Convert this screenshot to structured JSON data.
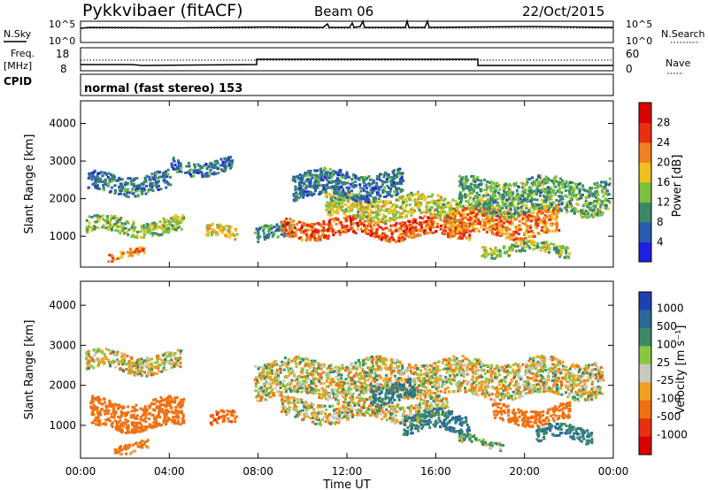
{
  "header": {
    "station": "Pykkvibaer (fitACF)",
    "beam": "Beam 06",
    "date": "22/Oct/2015"
  },
  "top_panels": {
    "nsky_label": "N.Sky",
    "nsky_left_ticks": [
      "10^5",
      "10^0"
    ],
    "nsky_right_ticks": [
      "10^5",
      "10^0"
    ],
    "nsearch_label": "N.Search",
    "freq_label_1": "Freq.",
    "freq_label_2": "[MHz]",
    "freq_ticks": [
      "18",
      "8"
    ],
    "nave_ticks": [
      "60",
      "0"
    ],
    "nave_label": "Nave",
    "cpid_label": "CPID",
    "mode_text": "normal (fast stereo) 153"
  },
  "axes": {
    "ylabel": "Slant Range [km]",
    "xlabel": "Time UT",
    "x_ticks": [
      "00:00",
      "04:00",
      "08:00",
      "12:00",
      "16:00",
      "20:00",
      "00:00"
    ],
    "y_ticks": [
      "1000",
      "2000",
      "3000",
      "4000"
    ]
  },
  "colorbars": {
    "power": {
      "label": "Power [dB]",
      "ticks": [
        "4",
        "8",
        "12",
        "16",
        "20",
        "24",
        "28"
      ],
      "colors": [
        "#2020e0",
        "#2a5ab0",
        "#3a8a6a",
        "#7cc040",
        "#f0c020",
        "#f08020",
        "#e83010",
        "#d80000"
      ]
    },
    "velocity": {
      "label": "Velocity [m s⁻¹]",
      "ticks": [
        "1000",
        "500",
        "100",
        "25",
        "-25",
        "-100",
        "-500",
        "-1000"
      ],
      "colors": [
        "#2040b0",
        "#2a6a9a",
        "#3a8a6a",
        "#88c840",
        "#c8c8c0",
        "#f0a020",
        "#f07010",
        "#e83010",
        "#d80000"
      ]
    }
  },
  "chart_data": [
    {
      "type": "heatmap",
      "name": "power",
      "x_range_hours": [
        0,
        24
      ],
      "ylim_km": [
        180,
        4600
      ],
      "bands": [
        {
          "start_h": 0.2,
          "end_h": 4.6,
          "center_km": 1300,
          "width_km": 420,
          "value_db": 14
        },
        {
          "start_h": 0.3,
          "end_h": 4.0,
          "center_km": 2450,
          "width_km": 500,
          "value_db": 8
        },
        {
          "start_h": 4.0,
          "end_h": 6.8,
          "center_km": 2900,
          "width_km": 350,
          "value_db": 8
        },
        {
          "start_h": 1.2,
          "end_h": 3.0,
          "center_km": 550,
          "width_km": 200,
          "value_db": 22
        },
        {
          "start_h": 5.6,
          "end_h": 7.0,
          "center_km": 1100,
          "width_km": 300,
          "value_db": 18
        },
        {
          "start_h": 7.8,
          "end_h": 9.5,
          "center_km": 1100,
          "width_km": 400,
          "value_db": 10
        },
        {
          "start_h": 9.0,
          "end_h": 17.5,
          "center_km": 1250,
          "width_km": 500,
          "value_db": 24
        },
        {
          "start_h": 11.0,
          "end_h": 17.0,
          "center_km": 1800,
          "width_km": 600,
          "value_db": 16
        },
        {
          "start_h": 9.5,
          "end_h": 14.5,
          "center_km": 2400,
          "width_km": 700,
          "value_db": 8
        },
        {
          "start_h": 16.5,
          "end_h": 21.5,
          "center_km": 1400,
          "width_km": 700,
          "value_db": 22
        },
        {
          "start_h": 17.0,
          "end_h": 23.8,
          "center_km": 2100,
          "width_km": 900,
          "value_db": 12
        },
        {
          "start_h": 18.0,
          "end_h": 22.0,
          "center_km": 700,
          "width_km": 300,
          "value_db": 14
        }
      ]
    },
    {
      "type": "heatmap",
      "name": "velocity",
      "x_range_hours": [
        0,
        24
      ],
      "ylim_km": [
        180,
        4600
      ],
      "bands": [
        {
          "start_h": 0.2,
          "end_h": 4.5,
          "center_km": 2600,
          "width_km": 450,
          "value_ms": 0
        },
        {
          "start_h": 0.4,
          "end_h": 4.6,
          "center_km": 1300,
          "width_km": 700,
          "value_ms": -300
        },
        {
          "start_h": 1.5,
          "end_h": 3.0,
          "center_km": 500,
          "width_km": 250,
          "value_ms": -150
        },
        {
          "start_h": 5.8,
          "end_h": 7.0,
          "center_km": 1150,
          "width_km": 300,
          "value_ms": -400
        },
        {
          "start_h": 7.8,
          "end_h": 23.5,
          "center_km": 2200,
          "width_km": 900,
          "value_ms": 0
        },
        {
          "start_h": 9.0,
          "end_h": 16.5,
          "center_km": 1400,
          "width_km": 500,
          "value_ms": 0
        },
        {
          "start_h": 14.5,
          "end_h": 17.5,
          "center_km": 1100,
          "width_km": 500,
          "value_ms": 500
        },
        {
          "start_h": 13.0,
          "end_h": 15.0,
          "center_km": 1900,
          "width_km": 500,
          "value_ms": 500
        },
        {
          "start_h": 18.5,
          "end_h": 22.0,
          "center_km": 1300,
          "width_km": 400,
          "value_ms": -300
        },
        {
          "start_h": 20.5,
          "end_h": 23.0,
          "center_km": 800,
          "width_km": 350,
          "value_ms": 500
        },
        {
          "start_h": 17.0,
          "end_h": 19.0,
          "center_km": 600,
          "width_km": 200,
          "value_ms": 100
        }
      ]
    }
  ]
}
